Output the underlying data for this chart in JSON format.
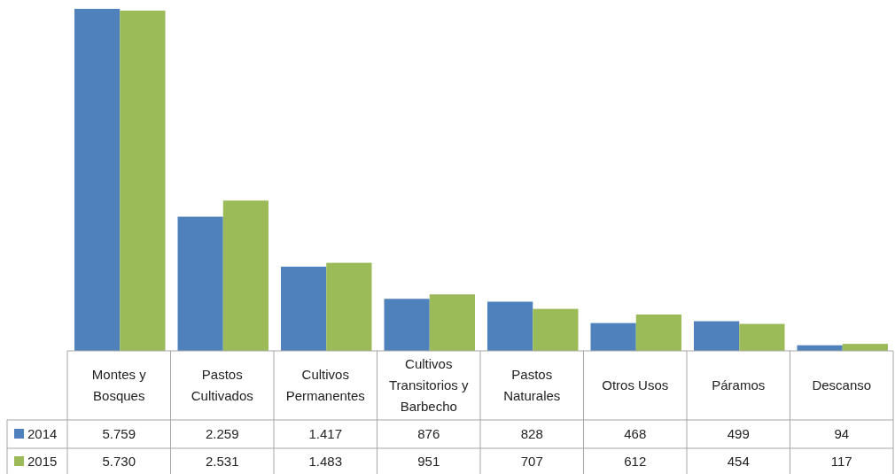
{
  "chart_data": {
    "type": "bar",
    "categories": [
      "Montes y Bosques",
      "Pastos Cultivados",
      "Cultivos Permanentes",
      "Cultivos Transitorios y Barbecho",
      "Pastos Naturales",
      "Otros Usos",
      "Páramos",
      "Descanso"
    ],
    "series": [
      {
        "name": "2014",
        "color": "#4f81bd",
        "values": [
          5759,
          2259,
          1417,
          876,
          828,
          468,
          499,
          94
        ],
        "value_labels": [
          "5.759",
          "2.259",
          "1.417",
          "876",
          "828",
          "468",
          "499",
          "94"
        ]
      },
      {
        "name": "2015",
        "color": "#9bbb59",
        "values": [
          5730,
          2531,
          1483,
          951,
          707,
          612,
          454,
          117
        ],
        "value_labels": [
          "5.730",
          "2.531",
          "1.483",
          "951",
          "707",
          "612",
          "454",
          "117"
        ]
      }
    ],
    "legend": "bottom",
    "grid": false
  }
}
